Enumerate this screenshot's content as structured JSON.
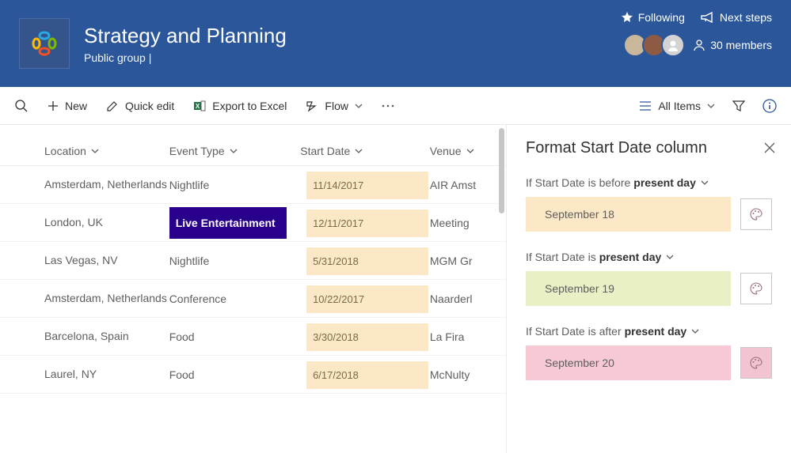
{
  "header": {
    "title": "Strategy and Planning",
    "subtitle": "Public group |",
    "following": "Following",
    "nextSteps": "Next steps",
    "membersLabel": "30 members",
    "avatarColors": [
      "#c9b79c",
      "#8d5a44",
      "#d3d3d3"
    ]
  },
  "cmdbar": {
    "new": "New",
    "quickEdit": "Quick edit",
    "export": "Export to Excel",
    "flow": "Flow",
    "viewName": "All Items"
  },
  "columns": {
    "location": "Location",
    "eventType": "Event Type",
    "startDate": "Start Date",
    "venue": "Venue"
  },
  "rows": [
    {
      "location": "Amsterdam, Netherlands",
      "eventType": "Nightlife",
      "startDate": "11/14/2017",
      "venue": "AIR Amst",
      "sel": false
    },
    {
      "location": "London, UK",
      "eventType": "Live Entertainment",
      "startDate": "12/11/2017",
      "venue": "Meeting",
      "sel": true
    },
    {
      "location": "Las Vegas, NV",
      "eventType": "Nightlife",
      "startDate": "5/31/2018",
      "venue": "MGM Gr",
      "sel": false
    },
    {
      "location": "Amsterdam, Netherlands",
      "eventType": "Conference",
      "startDate": "10/22/2017",
      "venue": "Naarderl",
      "sel": false
    },
    {
      "location": "Barcelona, Spain",
      "eventType": "Food",
      "startDate": "3/30/2018",
      "venue": "La Fira",
      "sel": false
    },
    {
      "location": "Laurel, NY",
      "eventType": "Food",
      "startDate": "6/17/2018",
      "venue": "McNulty",
      "sel": false
    }
  ],
  "startDatePillColor": "#fce8c6",
  "panel": {
    "title": "Format Start Date column",
    "conditions": [
      {
        "prefix": "If Start Date is before ",
        "bold": "present day",
        "sample": "September 18",
        "color": "#fce8c6",
        "selected": false
      },
      {
        "prefix": "If Start Date is ",
        "bold": "present day",
        "sample": "September 19",
        "color": "#e9f0c6",
        "selected": false
      },
      {
        "prefix": "If Start Date is after ",
        "bold": "present day",
        "sample": "September 20",
        "color": "#f6c9d5",
        "selected": true
      }
    ]
  }
}
